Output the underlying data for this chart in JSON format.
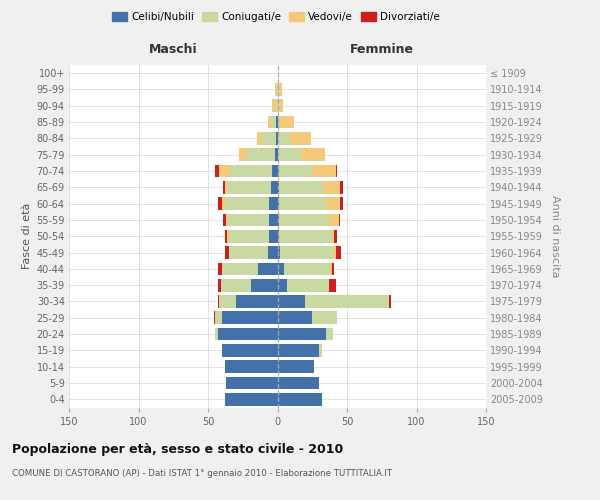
{
  "age_groups": [
    "0-4",
    "5-9",
    "10-14",
    "15-19",
    "20-24",
    "25-29",
    "30-34",
    "35-39",
    "40-44",
    "45-49",
    "50-54",
    "55-59",
    "60-64",
    "65-69",
    "70-74",
    "75-79",
    "80-84",
    "85-89",
    "90-94",
    "95-99",
    "100+"
  ],
  "birth_years": [
    "2005-2009",
    "2000-2004",
    "1995-1999",
    "1990-1994",
    "1985-1989",
    "1980-1984",
    "1975-1979",
    "1970-1974",
    "1965-1969",
    "1960-1964",
    "1955-1959",
    "1950-1954",
    "1945-1949",
    "1940-1944",
    "1935-1939",
    "1930-1934",
    "1925-1929",
    "1920-1924",
    "1915-1919",
    "1910-1914",
    "≤ 1909"
  ],
  "maschi": {
    "celibi": [
      38,
      37,
      38,
      40,
      43,
      40,
      30,
      19,
      14,
      7,
      6,
      6,
      6,
      5,
      4,
      2,
      1,
      1,
      0,
      0,
      0
    ],
    "coniugati": [
      0,
      0,
      0,
      0,
      2,
      5,
      12,
      22,
      26,
      28,
      29,
      30,
      32,
      31,
      30,
      21,
      10,
      4,
      2,
      1,
      0
    ],
    "vedovi": [
      0,
      0,
      0,
      0,
      0,
      0,
      0,
      0,
      0,
      0,
      1,
      1,
      2,
      2,
      8,
      5,
      4,
      2,
      2,
      1,
      0
    ],
    "divorziati": [
      0,
      0,
      0,
      0,
      0,
      1,
      1,
      2,
      3,
      3,
      2,
      2,
      3,
      1,
      3,
      0,
      0,
      0,
      0,
      0,
      0
    ]
  },
  "femmine": {
    "nubili": [
      32,
      30,
      26,
      30,
      35,
      25,
      20,
      7,
      5,
      2,
      1,
      1,
      1,
      1,
      1,
      0,
      0,
      0,
      0,
      0,
      0
    ],
    "coniugate": [
      0,
      0,
      0,
      2,
      5,
      18,
      60,
      30,
      33,
      38,
      38,
      36,
      34,
      32,
      24,
      17,
      9,
      2,
      0,
      0,
      0
    ],
    "vedove": [
      0,
      0,
      0,
      0,
      0,
      0,
      0,
      0,
      1,
      2,
      2,
      7,
      10,
      12,
      17,
      17,
      15,
      10,
      4,
      3,
      0
    ],
    "divorziate": [
      0,
      0,
      0,
      0,
      0,
      0,
      2,
      5,
      2,
      4,
      2,
      1,
      2,
      2,
      1,
      0,
      0,
      0,
      0,
      0,
      0
    ]
  },
  "colors": {
    "celibi": "#4472a8",
    "coniugati": "#c8d9a4",
    "vedovi": "#f5c97a",
    "divorziati": "#cc2020"
  },
  "xlim": 150,
  "title": "Popolazione per età, sesso e stato civile - 2010",
  "subtitle": "COMUNE DI CASTORANO (AP) - Dati ISTAT 1° gennaio 2010 - Elaborazione TUTTITALIA.IT",
  "ylabel_left": "Fasce di età",
  "ylabel_right": "Anni di nascita",
  "xlabel_maschi": "Maschi",
  "xlabel_femmine": "Femmine",
  "bg_color": "#f0f0f0",
  "plot_bg": "#ffffff",
  "legend_labels": [
    "Celibi/Nubili",
    "Coniugati/e",
    "Vedovi/e",
    "Divorziati/e"
  ]
}
